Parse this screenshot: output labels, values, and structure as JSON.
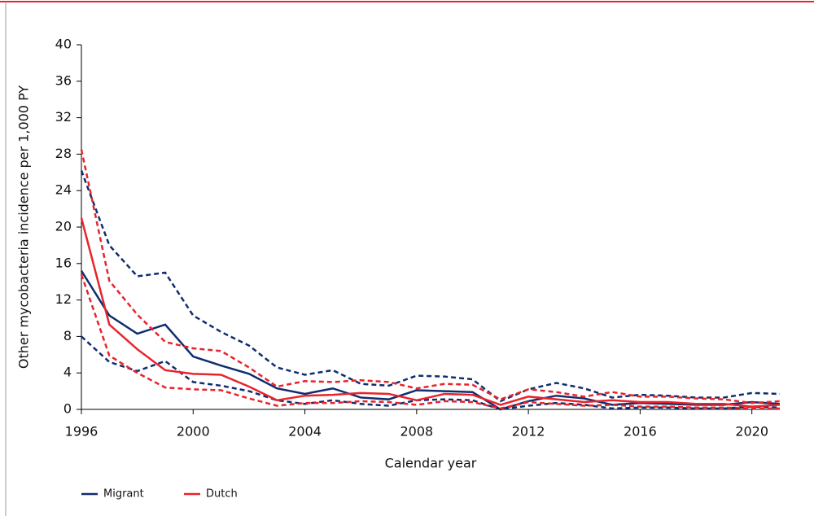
{
  "chart_data": {
    "type": "line",
    "xlabel": "Calendar year",
    "ylabel": "Other mycobacteria incidence per 1,000 PY",
    "x": [
      1996,
      1997,
      1998,
      1999,
      2000,
      2001,
      2002,
      2003,
      2004,
      2005,
      2006,
      2007,
      2008,
      2009,
      2010,
      2011,
      2012,
      2013,
      2014,
      2015,
      2016,
      2017,
      2018,
      2019,
      2020,
      2021
    ],
    "xlim": [
      1996,
      2021
    ],
    "xticks": [
      1996,
      2000,
      2004,
      2008,
      2012,
      2016,
      2020
    ],
    "ylim": [
      0,
      40
    ],
    "yticks": [
      0,
      4,
      8,
      12,
      16,
      20,
      24,
      28,
      32,
      36,
      40
    ],
    "legend": "bottom-left",
    "series": [
      {
        "name": "Migrant",
        "color": "#0f2d6e",
        "values": [
          15.2,
          10.3,
          8.3,
          9.3,
          5.8,
          4.8,
          3.9,
          2.3,
          1.7,
          2.3,
          1.3,
          1.1,
          2.1,
          2.0,
          1.9,
          0.0,
          0.9,
          1.5,
          1.2,
          0.5,
          0.7,
          0.6,
          0.5,
          0.5,
          0.8,
          0.6
        ],
        "upper": [
          26.2,
          18.0,
          14.6,
          15.0,
          10.3,
          8.5,
          7.0,
          4.6,
          3.8,
          4.3,
          2.8,
          2.6,
          3.7,
          3.6,
          3.3,
          0.9,
          2.2,
          2.9,
          2.3,
          1.3,
          1.6,
          1.5,
          1.3,
          1.3,
          1.8,
          1.7
        ],
        "lower": [
          8.0,
          5.2,
          4.2,
          5.3,
          3.0,
          2.6,
          2.0,
          1.0,
          0.6,
          1.0,
          0.6,
          0.4,
          1.0,
          1.1,
          1.0,
          0.0,
          0.4,
          0.7,
          0.5,
          0.1,
          0.2,
          0.2,
          0.1,
          0.1,
          0.3,
          0.2
        ]
      },
      {
        "name": "Dutch",
        "color": "#e8232b",
        "values": [
          21.0,
          9.3,
          6.6,
          4.3,
          3.9,
          3.8,
          2.5,
          1.0,
          1.5,
          1.6,
          1.8,
          1.7,
          1.0,
          1.7,
          1.6,
          0.5,
          1.4,
          1.1,
          0.8,
          1.0,
          0.8,
          0.8,
          0.6,
          0.6,
          0.3,
          0.5
        ],
        "upper": [
          28.5,
          14.1,
          10.4,
          7.4,
          6.7,
          6.4,
          4.6,
          2.5,
          3.1,
          3.0,
          3.2,
          3.0,
          2.3,
          2.8,
          2.7,
          1.1,
          2.2,
          1.9,
          1.4,
          1.9,
          1.4,
          1.4,
          1.2,
          1.1,
          0.7,
          0.9
        ],
        "lower": [
          14.8,
          5.9,
          4.0,
          2.4,
          2.2,
          2.1,
          1.2,
          0.4,
          0.7,
          0.7,
          0.9,
          0.8,
          0.5,
          0.9,
          0.8,
          0.1,
          0.8,
          0.6,
          0.4,
          0.5,
          0.3,
          0.3,
          0.2,
          0.2,
          0.1,
          0.1
        ]
      }
    ]
  }
}
